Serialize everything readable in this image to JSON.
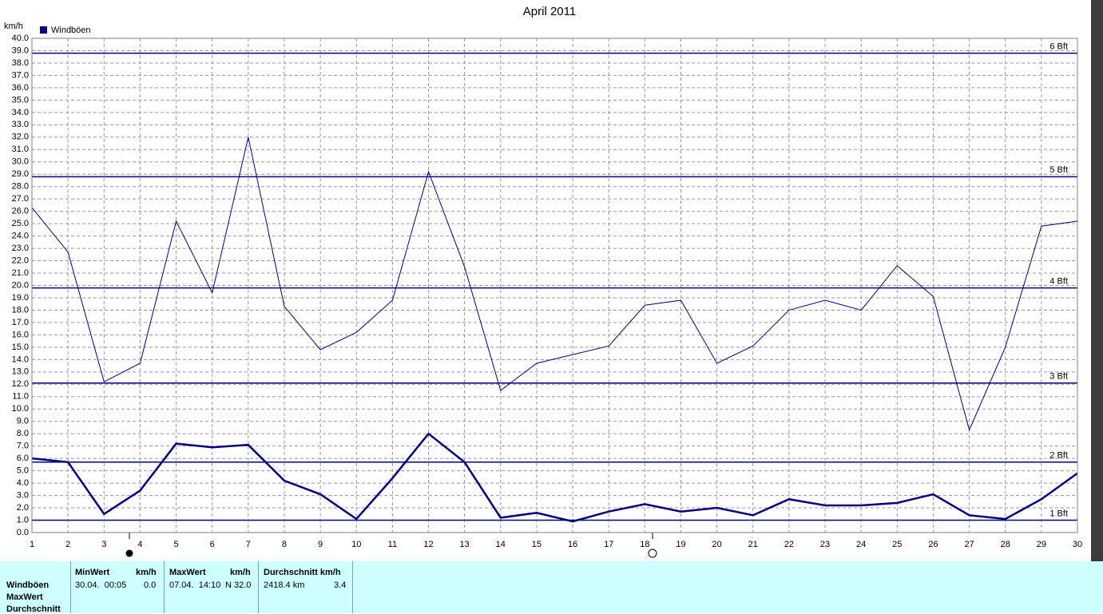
{
  "chart_data": {
    "type": "line",
    "title": "April 2011",
    "y_label": "km/h",
    "x": [
      1,
      2,
      3,
      4,
      5,
      6,
      7,
      8,
      9,
      10,
      11,
      12,
      13,
      14,
      15,
      16,
      17,
      18,
      19,
      20,
      21,
      22,
      23,
      24,
      25,
      26,
      27,
      28,
      29,
      30
    ],
    "xlim": [
      1,
      30
    ],
    "xticks": [
      1,
      2,
      3,
      4,
      5,
      6,
      7,
      8,
      9,
      10,
      11,
      12,
      13,
      14,
      15,
      16,
      17,
      18,
      19,
      20,
      21,
      22,
      23,
      24,
      25,
      26,
      27,
      28,
      29,
      30
    ],
    "ylim": [
      0,
      40
    ],
    "yticks": [
      {
        "value": 0,
        "label": "0.0"
      },
      {
        "value": 1,
        "label": "1.0"
      },
      {
        "value": 2,
        "label": "2.0"
      },
      {
        "value": 3,
        "label": "3.0"
      },
      {
        "value": 4,
        "label": "4.0"
      },
      {
        "value": 5,
        "label": "5.0"
      },
      {
        "value": 6,
        "label": "6.0"
      },
      {
        "value": 7,
        "label": "7.0"
      },
      {
        "value": 8,
        "label": "8.0"
      },
      {
        "value": 9,
        "label": "9.0"
      },
      {
        "value": 10,
        "label": "10.0"
      },
      {
        "value": 11,
        "label": "11.0"
      },
      {
        "value": 12,
        "label": "12.0"
      },
      {
        "value": 13,
        "label": "13.0"
      },
      {
        "value": 14,
        "label": "14.0"
      },
      {
        "value": 15,
        "label": "15.0"
      },
      {
        "value": 16,
        "label": "16.0"
      },
      {
        "value": 17,
        "label": "17.0"
      },
      {
        "value": 18,
        "label": "18.0"
      },
      {
        "value": 19,
        "label": "19.0"
      },
      {
        "value": 20,
        "label": "20.0"
      },
      {
        "value": 21,
        "label": "21.0"
      },
      {
        "value": 22,
        "label": "22.0"
      },
      {
        "value": 23,
        "label": "23.0"
      },
      {
        "value": 24,
        "label": "24.0"
      },
      {
        "value": 25,
        "label": "25.0"
      },
      {
        "value": 26,
        "label": "26.0"
      },
      {
        "value": 27,
        "label": "27.0"
      },
      {
        "value": 28,
        "label": "28.0"
      },
      {
        "value": 29,
        "label": "29.0"
      },
      {
        "value": 30,
        "label": "30.0"
      },
      {
        "value": 31,
        "label": "31.0"
      },
      {
        "value": 32,
        "label": "32.0"
      },
      {
        "value": 33,
        "label": "33.0"
      },
      {
        "value": 34,
        "label": "34.0"
      },
      {
        "value": 35,
        "label": "35.0"
      },
      {
        "value": 36,
        "label": "36.0"
      },
      {
        "value": 37,
        "label": "37.0"
      },
      {
        "value": 38,
        "label": "38.0"
      },
      {
        "value": 39,
        "label": "39.0"
      },
      {
        "value": 40,
        "label": "40.0"
      }
    ],
    "grid": true,
    "series": [
      {
        "name": "Windböen",
        "color": "#000080",
        "width": 1,
        "values": [
          26.3,
          22.7,
          12.2,
          13.7,
          25.2,
          19.4,
          32.0,
          18.3,
          14.8,
          16.2,
          18.8,
          29.2,
          21.5,
          11.5,
          13.7,
          14.4,
          15.1,
          18.4,
          18.8,
          13.7,
          15.1,
          18.0,
          18.8,
          18.0,
          21.6,
          19.1,
          8.3,
          15.0,
          24.8,
          25.2
        ]
      },
      {
        "color": "#000080",
        "width": 2.5,
        "values": [
          6.0,
          5.7,
          1.5,
          3.4,
          7.2,
          6.9,
          7.1,
          4.2,
          3.1,
          1.1,
          4.4,
          8.0,
          5.7,
          1.2,
          1.6,
          0.9,
          1.7,
          2.3,
          1.7,
          2.0,
          1.4,
          2.7,
          2.2,
          2.2,
          2.4,
          3.1,
          1.4,
          1.1,
          2.7,
          4.8
        ]
      }
    ],
    "reference_lines": [
      {
        "label": "1 Bft",
        "value": 1.0,
        "color": "#000080"
      },
      {
        "label": "2 Bft",
        "value": 5.7,
        "color": "#000080"
      },
      {
        "label": "3 Bft",
        "value": 12.1,
        "color": "#000080"
      },
      {
        "label": "4 Bft",
        "value": 19.8,
        "color": "#000080"
      },
      {
        "label": "5 Bft",
        "value": 28.8,
        "color": "#000080"
      },
      {
        "label": "6 Bft",
        "value": 38.8,
        "color": "#000080"
      }
    ]
  },
  "table": {
    "row_labels": [
      "Windböen",
      "MaxWert",
      "Durchschnitt"
    ],
    "min": {
      "header": "MinWert",
      "unit": "km/h",
      "time": "30.04.  00:05",
      "value": "0.0"
    },
    "max": {
      "header": "MaxWert",
      "unit": "km/h",
      "time": "07.04.  14:10",
      "value": "N 32.0"
    },
    "avg": {
      "header": "Durchschnitt km/h",
      "distance": "2418.4 km",
      "value": "3.4"
    }
  }
}
